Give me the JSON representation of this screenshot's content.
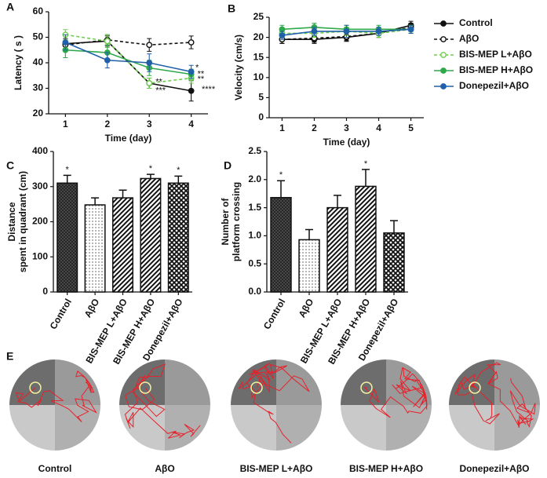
{
  "chart_data": [
    {
      "type": "line",
      "panel": "A",
      "ylabel": "Latency ( s )",
      "xlabel": "Time (day)",
      "xlim": [
        0.6,
        4.4
      ],
      "xticks": [
        1,
        2,
        3,
        4
      ],
      "ylim": [
        20,
        60
      ],
      "yticks": [
        20,
        30,
        40,
        50,
        60
      ],
      "x": [
        1,
        2,
        3,
        4
      ],
      "series": [
        {
          "name": "Control",
          "color": "#111111",
          "dashed": false,
          "marker": "filled",
          "values": [
            47.5,
            48.5,
            32,
            29
          ],
          "errors": [
            3,
            2,
            2,
            4
          ]
        },
        {
          "name": "AβO",
          "color": "#111111",
          "dashed": true,
          "marker": "open",
          "values": [
            47,
            49,
            47,
            48
          ],
          "errors": [
            2.5,
            2,
            2.5,
            2.5
          ]
        },
        {
          "name": "BIS-MEP L+AβO",
          "color": "#6ccf4a",
          "dashed": true,
          "marker": "open",
          "values": [
            51,
            48.5,
            32,
            34
          ],
          "errors": [
            2,
            2.5,
            2,
            2
          ]
        },
        {
          "name": "BIS-MEP H+AβO",
          "color": "#2ea84a",
          "dashed": false,
          "marker": "filled",
          "values": [
            45,
            44,
            38,
            35.5
          ],
          "errors": [
            3,
            3,
            3,
            2
          ]
        },
        {
          "name": "Donepezil+AβO",
          "color": "#2160a8",
          "dashed": false,
          "marker": "filled",
          "values": [
            48,
            41,
            40,
            36.5
          ],
          "errors": [
            3,
            3,
            3.5,
            2.5
          ]
        }
      ],
      "annotations": [
        {
          "text": "*",
          "x": 4.1,
          "y": 38
        },
        {
          "text": "**",
          "x": 4.15,
          "y": 35.5
        },
        {
          "text": "**",
          "x": 4.15,
          "y": 33.5
        },
        {
          "text": "****",
          "x": 4.25,
          "y": 29.5
        },
        {
          "text": "**",
          "x": 3.15,
          "y": 32.5
        },
        {
          "text": "***",
          "x": 3.15,
          "y": 29
        }
      ]
    },
    {
      "type": "line",
      "panel": "B",
      "ylabel": "Velocity (cm/s)",
      "xlabel": "Time (day)",
      "xlim": [
        0.6,
        5.4
      ],
      "xticks": [
        1,
        2,
        3,
        4,
        5
      ],
      "ylim": [
        0,
        25
      ],
      "yticks": [
        0,
        5,
        10,
        15,
        20,
        25
      ],
      "x": [
        1,
        2,
        3,
        4,
        5
      ],
      "series": [
        {
          "name": "Control",
          "color": "#111111",
          "dashed": false,
          "marker": "filled",
          "values": [
            19.5,
            19.5,
            20,
            21,
            23
          ],
          "errors": [
            1,
            1,
            1,
            1,
            1
          ]
        },
        {
          "name": "AβO",
          "color": "#111111",
          "dashed": true,
          "marker": "open",
          "values": [
            19.5,
            19.8,
            20.2,
            21,
            22.5
          ],
          "errors": [
            1,
            1,
            1,
            1,
            1
          ]
        },
        {
          "name": "BIS-MEP L+AβO",
          "color": "#6ccf4a",
          "dashed": true,
          "marker": "open",
          "values": [
            21,
            21,
            21.5,
            21,
            22
          ],
          "errors": [
            1,
            1,
            1,
            1,
            1
          ]
        },
        {
          "name": "BIS-MEP H+AβO",
          "color": "#2ea84a",
          "dashed": false,
          "marker": "filled",
          "values": [
            22,
            22.5,
            22,
            22,
            22
          ],
          "errors": [
            1,
            1,
            1,
            1,
            1
          ]
        },
        {
          "name": "Donepezil+AβO",
          "color": "#2160a8",
          "dashed": false,
          "marker": "filled",
          "values": [
            20.5,
            21.5,
            21.5,
            21.5,
            22
          ],
          "errors": [
            1,
            1,
            1.5,
            1,
            1
          ]
        }
      ]
    },
    {
      "type": "bar",
      "panel": "C",
      "ylabel": [
        "Distance",
        "spent in quadrant (cm)"
      ],
      "ylim": [
        0,
        400
      ],
      "yticks": [
        0,
        100,
        200,
        300,
        400
      ],
      "categories": [
        "Control",
        "AβO",
        "BIS-MEP L+AβO",
        "BIS-MEP H+AβO",
        "Donepezil+AβO"
      ],
      "values": [
        310,
        248,
        268,
        323,
        310
      ],
      "errors": [
        22,
        20,
        22,
        12,
        20
      ],
      "patterns": [
        "crosshatch",
        "dots",
        "diagonal",
        "diagonal",
        "cross"
      ],
      "annotations": [
        "*",
        null,
        null,
        "*",
        "*"
      ]
    },
    {
      "type": "bar",
      "panel": "D",
      "ylabel": [
        "Number of",
        "platform crossing"
      ],
      "ylim": [
        0,
        2.5
      ],
      "yticks": [
        {
          "value": 0,
          "label": "0.0"
        },
        {
          "value": 0.5,
          "label": "0.5"
        },
        {
          "value": 1,
          "label": "1.0"
        },
        {
          "value": 1.5,
          "label": "1.5"
        },
        {
          "value": 2,
          "label": "2.0"
        },
        {
          "value": 2.5,
          "label": "2.5"
        }
      ],
      "categories": [
        "Control",
        "AβO",
        "BIS-MEP L+AβO",
        "BIS-MEP H+AβO",
        "Donepezil+AβO"
      ],
      "values": [
        1.68,
        0.93,
        1.5,
        1.88,
        1.05
      ],
      "errors": [
        0.3,
        0.18,
        0.22,
        0.3,
        0.22
      ],
      "patterns": [
        "crosshatch",
        "dots",
        "diagonal",
        "diagonal",
        "cross"
      ],
      "annotations": [
        "*",
        null,
        null,
        "*",
        null
      ]
    }
  ],
  "panel_e": {
    "panel": "E",
    "labels": [
      "Control",
      "AβO",
      "BIS-MEP L+AβO",
      "BIS-MEP H+AβO",
      "Donepezil+AβO"
    ]
  }
}
